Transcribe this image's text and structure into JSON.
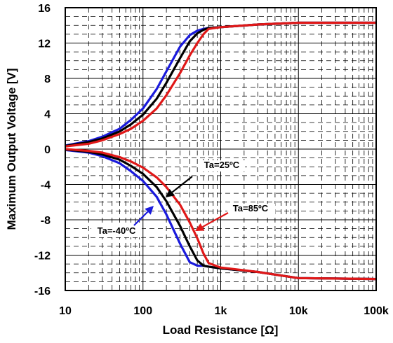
{
  "chart_data": {
    "type": "line",
    "title": "",
    "xlabel": "Load Resistance [Ω]",
    "ylabel": "Maximum Output Voltage [V]",
    "xscale": "log",
    "xlim": [
      10,
      100000
    ],
    "ylim": [
      -16,
      16
    ],
    "grid": true,
    "xticks": [
      {
        "value": 10,
        "label": "10"
      },
      {
        "value": 100,
        "label": "100"
      },
      {
        "value": 1000,
        "label": "1k"
      },
      {
        "value": 10000,
        "label": "10k"
      },
      {
        "value": 100000,
        "label": "100k"
      }
    ],
    "yticks": [
      {
        "value": 16,
        "label": "16"
      },
      {
        "value": 12,
        "label": "12"
      },
      {
        "value": 8,
        "label": "8"
      },
      {
        "value": 4,
        "label": "4"
      },
      {
        "value": 0,
        "label": "0"
      },
      {
        "value": -4,
        "label": "-4"
      },
      {
        "value": -8,
        "label": "-8"
      },
      {
        "value": -12,
        "label": "-12"
      },
      {
        "value": -16,
        "label": "-16"
      }
    ],
    "series": [
      {
        "color": "#1a1adc",
        "x": [
          10,
          20,
          30,
          50,
          70,
          100,
          150,
          200,
          300,
          400,
          500,
          600,
          700,
          1000,
          3000,
          10000,
          100000
        ],
        "upper": [
          0.4,
          0.9,
          1.4,
          2.3,
          3.3,
          4.6,
          6.8,
          8.8,
          11.6,
          12.9,
          13.4,
          13.6,
          13.7,
          13.8,
          14.1,
          14.3,
          14.3
        ],
        "lower": [
          -0.1,
          -0.4,
          -0.8,
          -1.6,
          -2.5,
          -3.6,
          -5.4,
          -7.4,
          -10.7,
          -12.8,
          -13.2,
          -13.2,
          -13.3,
          -13.5,
          -13.9,
          -14.6,
          -14.7
        ]
      },
      {
        "color": "#000000",
        "x": [
          10,
          20,
          30,
          50,
          70,
          100,
          150,
          200,
          300,
          400,
          500,
          600,
          700,
          1000,
          3000,
          10000,
          100000
        ],
        "upper": [
          0.35,
          0.8,
          1.2,
          2.0,
          2.8,
          3.9,
          5.7,
          7.5,
          10.3,
          12.2,
          13.1,
          13.5,
          13.7,
          13.8,
          14.1,
          14.3,
          14.3
        ],
        "lower": [
          -0.05,
          -0.3,
          -0.6,
          -1.2,
          -1.9,
          -2.8,
          -4.3,
          -5.9,
          -8.7,
          -11.0,
          -12.6,
          -13.2,
          -13.3,
          -13.5,
          -13.9,
          -14.6,
          -14.7
        ]
      },
      {
        "color": "#e01818",
        "x": [
          10,
          20,
          30,
          50,
          70,
          100,
          150,
          200,
          300,
          400,
          500,
          600,
          700,
          1000,
          3000,
          10000,
          100000
        ],
        "upper": [
          0.3,
          0.6,
          1.0,
          1.7,
          2.3,
          3.2,
          4.6,
          6.1,
          8.6,
          10.6,
          12.0,
          13.0,
          13.6,
          13.8,
          14.1,
          14.3,
          14.3
        ],
        "lower": [
          0.0,
          -0.2,
          -0.4,
          -0.9,
          -1.4,
          -2.1,
          -3.2,
          -4.3,
          -6.3,
          -8.3,
          -10.1,
          -11.8,
          -12.9,
          -13.4,
          -13.9,
          -14.6,
          -14.7
        ]
      }
    ],
    "annotations": [
      {
        "text": "Ta=25ºC",
        "color": "#000000"
      },
      {
        "text": "Ta=85ºC",
        "color": "#e01818"
      },
      {
        "text": "Ta=-40ºC",
        "color": "#1a1adc"
      }
    ]
  }
}
